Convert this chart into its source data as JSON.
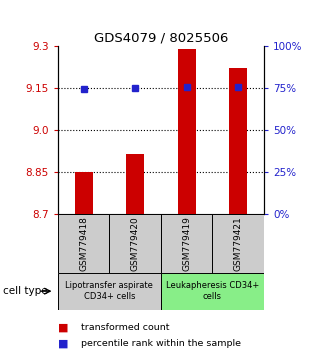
{
  "title": "GDS4079 / 8025506",
  "samples": [
    "GSM779418",
    "GSM779420",
    "GSM779419",
    "GSM779421"
  ],
  "bar_values": [
    8.851,
    8.915,
    9.29,
    9.22
  ],
  "bar_base": 8.7,
  "percentile_values": [
    9.148,
    9.149,
    9.155,
    9.154
  ],
  "ylim": [
    8.7,
    9.3
  ],
  "yticks_left": [
    8.7,
    8.85,
    9.0,
    9.15,
    9.3
  ],
  "yticks_right_pct": [
    0,
    25,
    50,
    75,
    100
  ],
  "bar_color": "#cc0000",
  "dot_color": "#2222cc",
  "bar_width": 0.35,
  "groups": [
    {
      "label": "Lipotransfer aspirate\nCD34+ cells",
      "color": "#cccccc",
      "cols": [
        0,
        1
      ]
    },
    {
      "label": "Leukapheresis CD34+\ncells",
      "color": "#88ee88",
      "cols": [
        2,
        3
      ]
    }
  ],
  "cell_type_label": "cell type",
  "legend_items": [
    {
      "color": "#cc0000",
      "label": "transformed count"
    },
    {
      "color": "#2222cc",
      "label": "percentile rank within the sample"
    }
  ],
  "left_tick_color": "#cc0000",
  "right_tick_color": "#2222cc"
}
